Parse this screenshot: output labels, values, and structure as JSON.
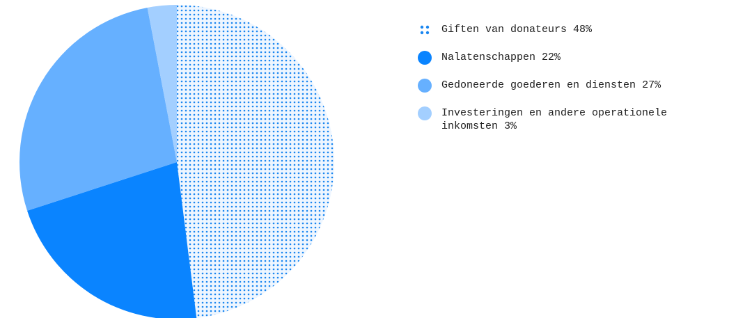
{
  "chart_data": {
    "type": "pie",
    "categories": [
      "Giften van donateurs",
      "Nalatenschappen",
      "Gedoneerde goederen en diensten",
      "Investeringen en andere operationele inkomsten"
    ],
    "values": [
      48,
      22,
      27,
      3
    ],
    "value_labels": [
      "48%",
      "22%",
      "27%",
      "3%"
    ],
    "colors": [
      "#1a86f0",
      "#0a84ff",
      "#66b0ff",
      "#a3cfff"
    ],
    "patterned": [
      true,
      false,
      false,
      false
    ]
  }
}
